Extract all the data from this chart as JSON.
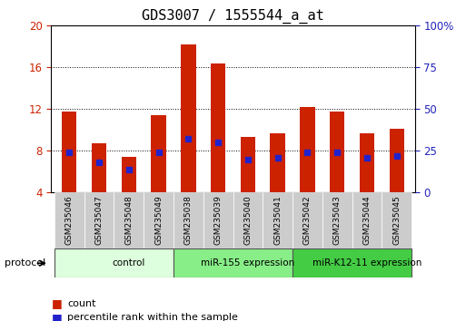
{
  "title": "GDS3007 / 1555544_a_at",
  "samples": [
    "GSM235046",
    "GSM235047",
    "GSM235048",
    "GSM235049",
    "GSM235038",
    "GSM235039",
    "GSM235040",
    "GSM235041",
    "GSM235042",
    "GSM235043",
    "GSM235044",
    "GSM235045"
  ],
  "count_values": [
    11.8,
    8.7,
    7.4,
    11.4,
    18.2,
    16.4,
    9.3,
    9.7,
    12.2,
    11.8,
    9.7,
    10.1
  ],
  "percentile_values_pct": [
    24,
    18,
    14,
    24,
    32,
    30,
    20,
    21,
    24,
    24,
    21,
    22
  ],
  "groups": [
    {
      "label": "control",
      "span": [
        0,
        4
      ],
      "color": "#ddffdd"
    },
    {
      "label": "miR-155 expression",
      "span": [
        4,
        8
      ],
      "color": "#88ee88"
    },
    {
      "label": "miR-K12-11 expression",
      "span": [
        8,
        12
      ],
      "color": "#44cc44"
    }
  ],
  "ylim_left": [
    4,
    20
  ],
  "ylim_right": [
    0,
    100
  ],
  "yticks_left": [
    4,
    8,
    12,
    16,
    20
  ],
  "yticks_right": [
    0,
    25,
    50,
    75,
    100
  ],
  "bar_color": "#cc2200",
  "dot_color": "#2222cc",
  "bar_width": 0.5,
  "left_tick_color": "#cc2200",
  "right_tick_color": "#2222bb",
  "title_fontsize": 11,
  "legend_count_label": "count",
  "legend_pct_label": "percentile rank within the sample"
}
